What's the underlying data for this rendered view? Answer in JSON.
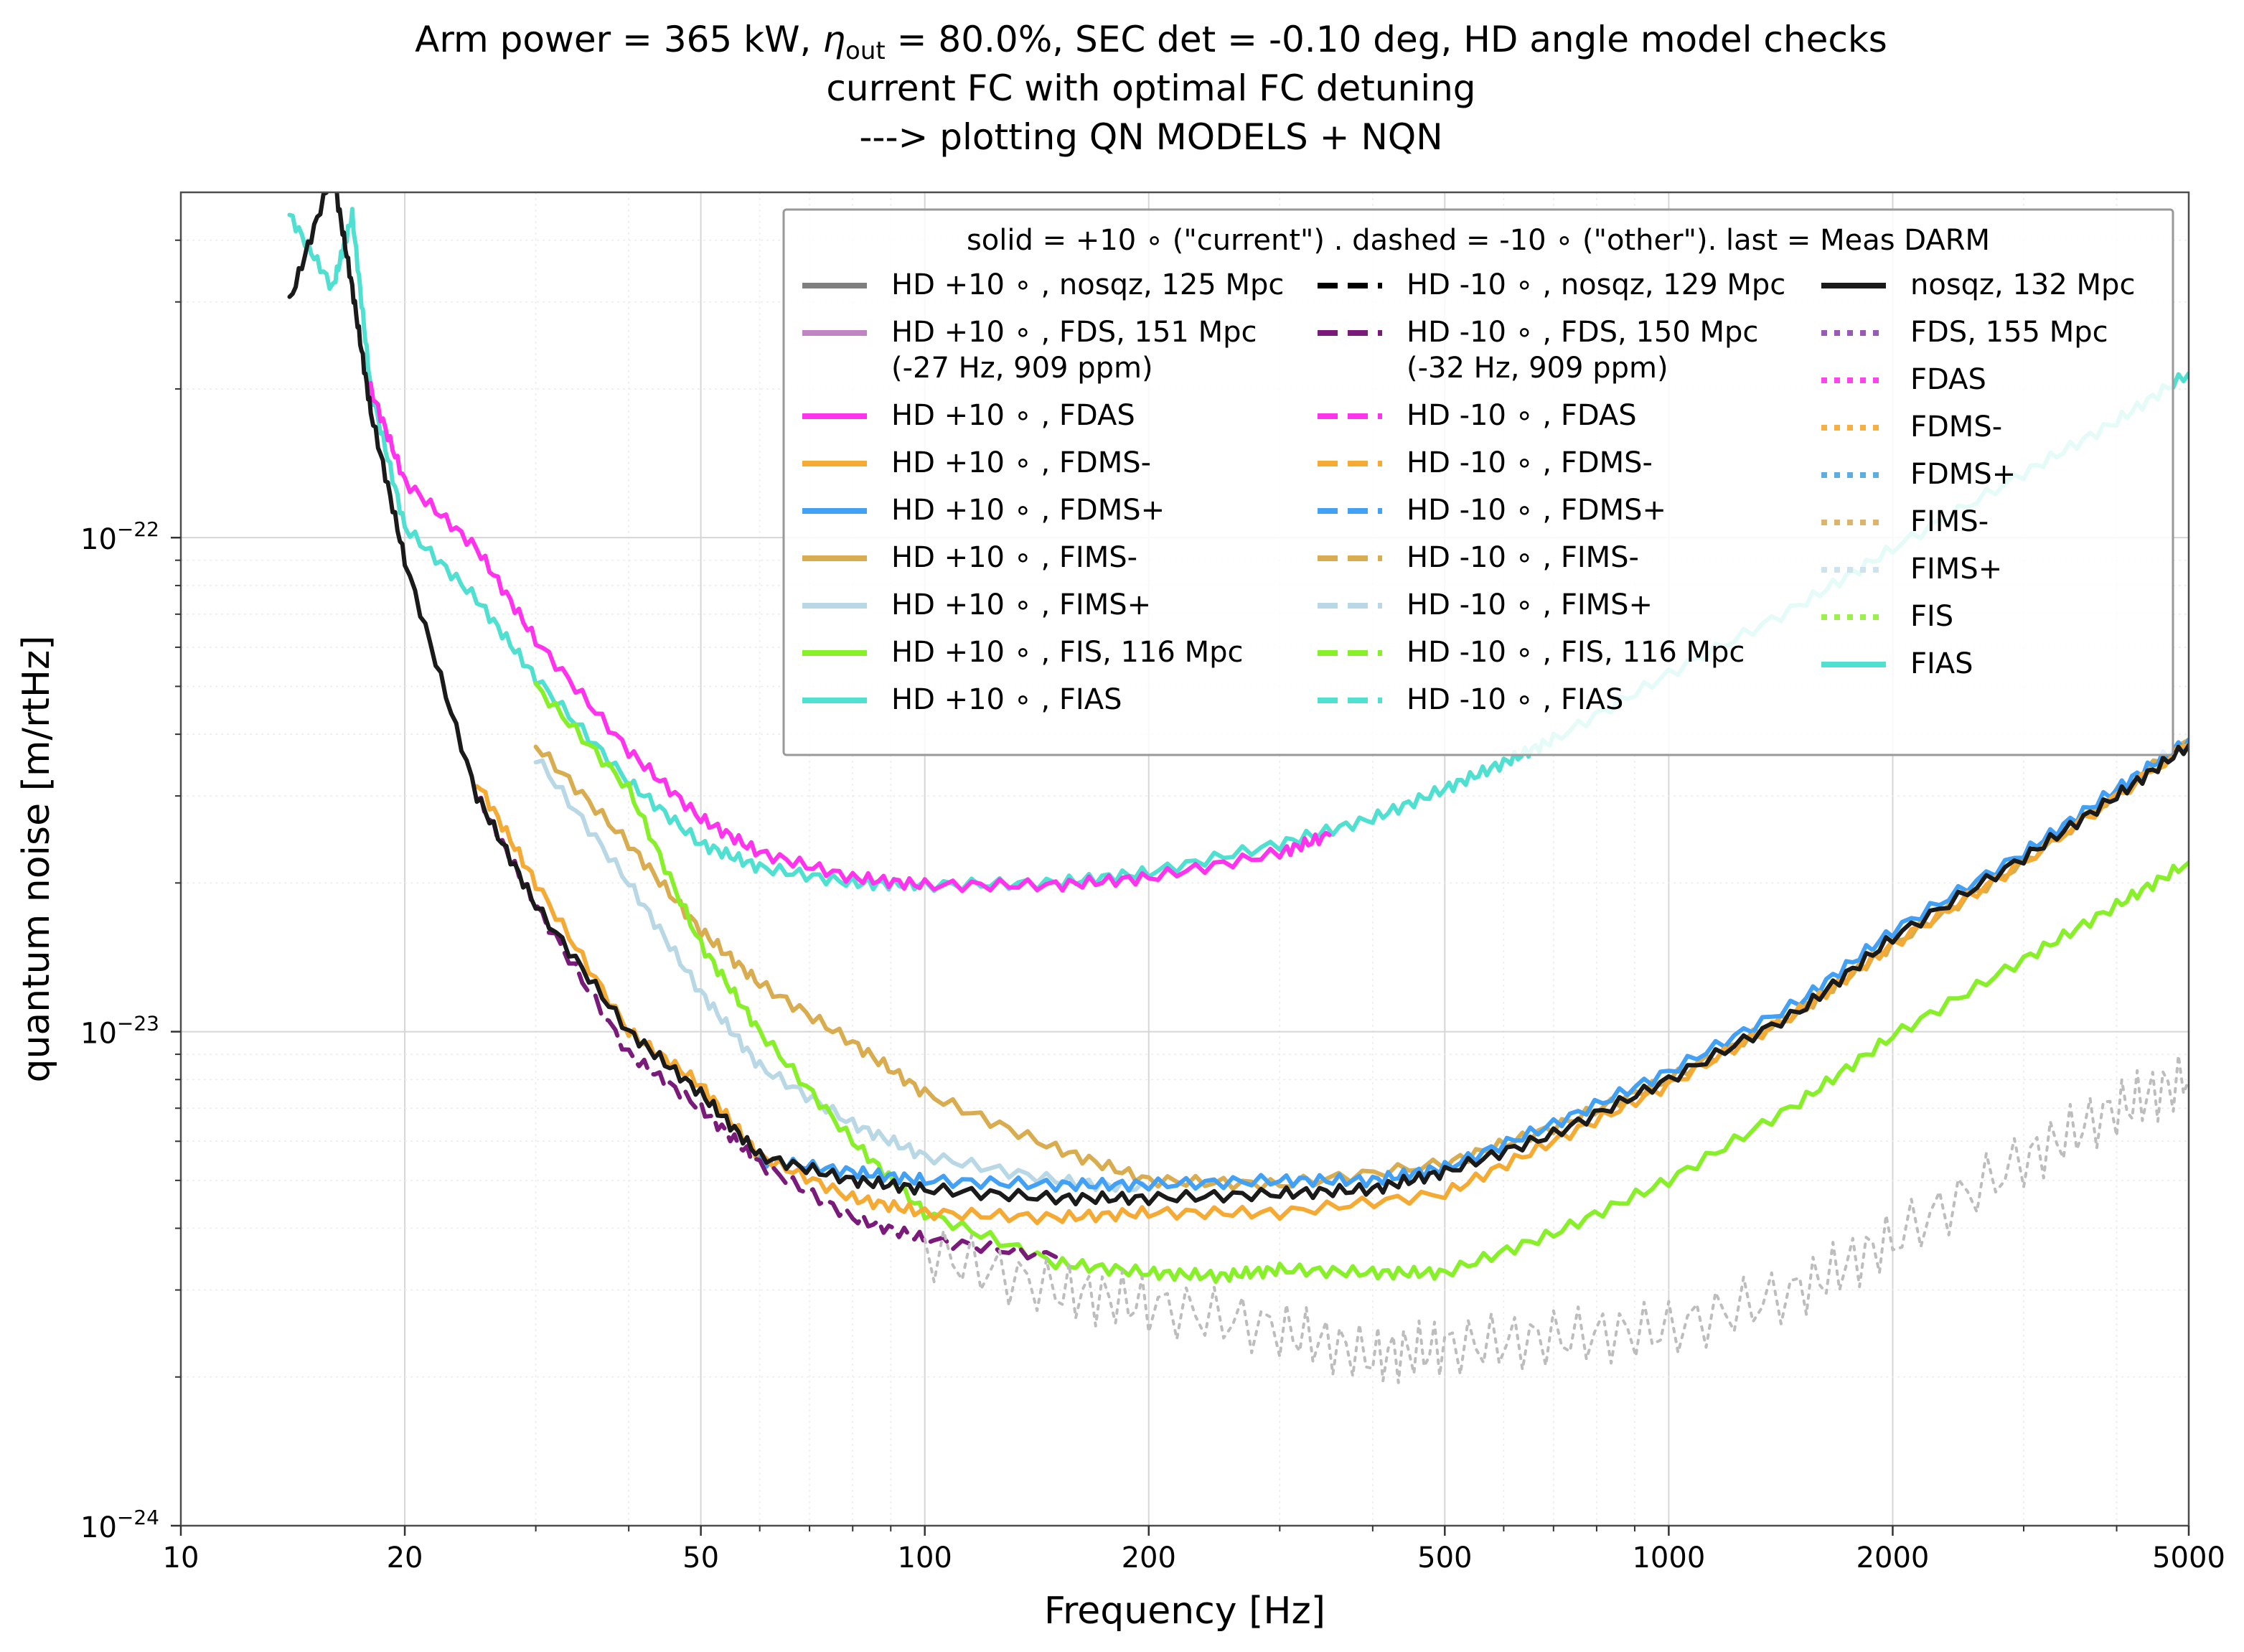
{
  "title": {
    "line1_pre": "Arm power = 365 kW, ",
    "line1_eta": "η",
    "line1_sub": "out",
    "line1_post": " = 80.0%, SEC det = -0.10 deg, HD angle model checks",
    "line2": "current FC with optimal FC detuning",
    "line3": "---> plotting QN MODELS + NQN"
  },
  "chart_data": {
    "type": "line",
    "xlabel": "Frequency [Hz]",
    "ylabel": "quantum noise [m/rtHz]",
    "x_scale": "log",
    "y_scale": "log",
    "xlim": [
      10,
      5000
    ],
    "ylim": [
      1e-24,
      5e-22
    ],
    "grid": true,
    "x_ticks": [
      {
        "value": 10,
        "label": "10"
      },
      {
        "value": 20,
        "label": "20"
      },
      {
        "value": 50,
        "label": "50"
      },
      {
        "value": 100,
        "label": "100"
      },
      {
        "value": 200,
        "label": "200"
      },
      {
        "value": 500,
        "label": "500"
      },
      {
        "value": 1000,
        "label": "1000"
      },
      {
        "value": 2000,
        "label": "2000"
      },
      {
        "value": 5000,
        "label": "5000"
      }
    ],
    "y_ticks": [
      {
        "value": 1e-24,
        "mant": "10",
        "exp": "−24"
      },
      {
        "value": 1e-23,
        "mant": "10",
        "exp": "−23"
      },
      {
        "value": 1e-22,
        "mant": "10",
        "exp": "−22"
      }
    ],
    "legend": {
      "placement": "top-right",
      "header": "solid = +10 ∘ (\"current\") . dashed = -10 ∘ (\"other\"). last = Meas DARM",
      "columns": [
        [
          {
            "label": [
              "HD +10 ∘ , nosqz, 125 Mpc"
            ],
            "color": "#7f7f7f",
            "style": "solid"
          },
          {
            "label": [
              "HD +10 ∘ , FDS, 151 Mpc",
              "(-27 Hz, 909 ppm)"
            ],
            "color": "#c084c4",
            "style": "solid"
          },
          {
            "label": [
              "HD +10 ∘ , FDAS"
            ],
            "color": "#ff33ee",
            "style": "solid"
          },
          {
            "label": [
              "HD +10 ∘ , FDMS-"
            ],
            "color": "#f5aa33",
            "style": "solid"
          },
          {
            "label": [
              "HD +10 ∘ , FDMS+"
            ],
            "color": "#42a0f5",
            "style": "solid"
          },
          {
            "label": [
              "HD +10 ∘ , FIMS-"
            ],
            "color": "#d9ad4f",
            "style": "solid"
          },
          {
            "label": [
              "HD +10 ∘ , FIMS+"
            ],
            "color": "#b8d8e6",
            "style": "solid"
          },
          {
            "label": [
              "HD +10 ∘ , FIS, 116 Mpc"
            ],
            "color": "#88f028",
            "style": "solid"
          },
          {
            "label": [
              "HD +10 ∘ , FIAS"
            ],
            "color": "#4fe0d2",
            "style": "solid"
          }
        ],
        [
          {
            "label": [
              "HD -10 ∘ , nosqz, 129 Mpc"
            ],
            "color": "#000000",
            "style": "dashed"
          },
          {
            "label": [
              "HD -10 ∘ , FDS, 150 Mpc",
              "(-32 Hz, 909 ppm)"
            ],
            "color": "#7a1a7a",
            "style": "dashed"
          },
          {
            "label": [
              "HD -10 ∘ , FDAS"
            ],
            "color": "#ff33ee",
            "style": "dashed"
          },
          {
            "label": [
              "HD -10 ∘ , FDMS-"
            ],
            "color": "#f5aa33",
            "style": "dashed"
          },
          {
            "label": [
              "HD -10 ∘ , FDMS+"
            ],
            "color": "#42a0f5",
            "style": "dashed"
          },
          {
            "label": [
              "HD -10 ∘ , FIMS-"
            ],
            "color": "#d9ad4f",
            "style": "dashed"
          },
          {
            "label": [
              "HD -10 ∘ , FIMS+"
            ],
            "color": "#b8d8e6",
            "style": "dashed"
          },
          {
            "label": [
              "HD -10 ∘ , FIS, 116 Mpc"
            ],
            "color": "#88f028",
            "style": "dashed"
          },
          {
            "label": [
              "HD -10 ∘ , FIAS"
            ],
            "color": "#4fe0d2",
            "style": "dashed"
          }
        ],
        [
          {
            "label": [
              "nosqz, 132 Mpc"
            ],
            "color": "#1a1a1a",
            "style": "solid"
          },
          {
            "label": [
              "FDS, 155 Mpc"
            ],
            "color": "#9b59b6",
            "style": "dotted"
          },
          {
            "label": [
              "FDAS"
            ],
            "color": "#ff44ee",
            "style": "dotted"
          },
          {
            "label": [
              "FDMS-"
            ],
            "color": "#f5b041",
            "style": "dotted"
          },
          {
            "label": [
              "FDMS+"
            ],
            "color": "#5dade2",
            "style": "dotted"
          },
          {
            "label": [
              "FIMS-"
            ],
            "color": "#dbb56a",
            "style": "dotted"
          },
          {
            "label": [
              "FIMS+"
            ],
            "color": "#cfe3ec",
            "style": "dotted"
          },
          {
            "label": [
              "FIS"
            ],
            "color": "#9cf04a",
            "style": "dotted"
          },
          {
            "label": [
              "FIAS"
            ],
            "color": "#4fe0d2",
            "style": "solid"
          }
        ]
      ]
    },
    "series": [
      {
        "color": "#4fe0d2",
        "style": "solid",
        "x": [
          14,
          16,
          17,
          18,
          20,
          25,
          30,
          40,
          50,
          60,
          80,
          100,
          150,
          200,
          300,
          400,
          500,
          600,
          700,
          1000,
          1500,
          2000,
          3000,
          4000,
          5000
        ],
        "y": [
          4.5e-22,
          3.2e-22,
          4.5e-22,
          2e-22,
          1.05e-22,
          7.5e-23,
          5.2e-23,
          3.2e-23,
          2.4e-23,
          2.15e-23,
          2e-23,
          1.98e-23,
          2e-23,
          2.1e-23,
          2.4e-23,
          2.7e-23,
          3.1e-23,
          3.5e-23,
          3.9e-23,
          5.3e-23,
          7.3e-23,
          9.5e-23,
          1.35e-22,
          1.72e-22,
          2.15e-22
        ]
      },
      {
        "color": "#ff33ee",
        "style": "solid",
        "x": [
          18,
          20,
          25,
          30,
          40,
          50,
          60,
          80,
          100,
          150,
          200,
          300,
          350
        ],
        "y": [
          2e-22,
          1.3e-22,
          9.5e-23,
          6.2e-23,
          3.7e-23,
          2.7e-23,
          2.3e-23,
          2.05e-23,
          1.98e-23,
          1.98e-23,
          2.05e-23,
          2.3e-23,
          2.5e-23
        ]
      },
      {
        "color": "#d9ad4f",
        "style": "solid",
        "x": [
          30,
          40,
          50,
          60,
          80,
          100,
          150,
          200,
          300,
          500,
          700,
          1000,
          1500,
          2000,
          3000,
          5000
        ],
        "y": [
          3.8e-23,
          2.4e-23,
          1.6e-23,
          1.25e-23,
          9.5e-24,
          7.5e-24,
          5.8e-24,
          5e-24,
          4.9e-24,
          5.4e-24,
          6.4e-24,
          8e-24,
          1.1e-23,
          1.5e-23,
          2.2e-23,
          3.9e-23
        ]
      },
      {
        "color": "#b8d8e6",
        "style": "solid",
        "x": [
          30,
          40,
          50,
          60,
          80,
          100,
          150,
          200
        ],
        "y": [
          3.6e-23,
          2e-23,
          1.2e-23,
          8.5e-24,
          6.5e-24,
          5.6e-24,
          5e-24,
          4.8e-24
        ]
      },
      {
        "color": "#88f028",
        "style": "solid",
        "x": [
          30,
          40,
          50,
          60,
          80,
          100,
          150,
          200,
          250,
          300,
          400,
          500,
          700,
          1000,
          1500,
          2000,
          3000,
          4000,
          5000
        ],
        "y": [
          5e-23,
          3.1e-23,
          1.5e-23,
          1e-23,
          6e-24,
          4.3e-24,
          3.4e-24,
          3.25e-24,
          3.2e-24,
          3.3e-24,
          3.25e-24,
          3.25e-24,
          3.9e-24,
          5e-24,
          7.2e-24,
          9.8e-24,
          1.4e-23,
          1.8e-23,
          2.2e-23
        ]
      },
      {
        "color": "#42a0f5",
        "style": "solid",
        "x": [
          60,
          80,
          100,
          150,
          200,
          300,
          400,
          500,
          700,
          1000,
          1500,
          2000,
          3000,
          4000,
          5000
        ],
        "y": [
          5.5e-24,
          5.2e-24,
          5e-24,
          4.9e-24,
          4.9e-24,
          5e-24,
          5e-24,
          5.3e-24,
          6.5e-24,
          8.3e-24,
          1.15e-23,
          1.6e-23,
          2.3e-23,
          3.1e-23,
          3.9e-23
        ]
      },
      {
        "color": "#f5aa33",
        "style": "solid",
        "x": [
          25,
          30,
          40,
          50,
          60,
          80,
          100,
          150,
          200,
          300,
          500,
          700,
          1000,
          1500,
          2000,
          3000,
          5000
        ],
        "y": [
          3.2e-23,
          2e-23,
          1e-23,
          7.8e-24,
          5.6e-24,
          4.6e-24,
          4.3e-24,
          4.2e-24,
          4.3e-24,
          4.3e-24,
          4.7e-24,
          6e-24,
          7.8e-24,
          1.1e-23,
          1.5e-23,
          2.2e-23,
          3.8e-23
        ]
      },
      {
        "color": "#7a1a7a",
        "style": "dashed",
        "x": [
          25,
          30,
          40,
          50,
          60,
          80,
          100,
          150
        ],
        "y": [
          3e-23,
          1.8e-23,
          9e-24,
          7e-24,
          5.4e-24,
          4.2e-24,
          3.8e-24,
          3.5e-24
        ]
      },
      {
        "color": "#1a1a1a",
        "style": "solid",
        "x": [
          14,
          16,
          17,
          18,
          20,
          25,
          30,
          40,
          50,
          60,
          80,
          100,
          150,
          200,
          300,
          400,
          500,
          700,
          1000,
          1500,
          2000,
          3000,
          4000,
          5000
        ],
        "y": [
          3e-22,
          5.5e-22,
          3.2e-22,
          1.8e-22,
          9e-23,
          3e-23,
          1.8e-23,
          1e-23,
          7.5e-24,
          5.6e-24,
          5e-24,
          4.8e-24,
          4.6e-24,
          4.6e-24,
          4.7e-24,
          4.8e-24,
          5.2e-24,
          6.2e-24,
          8e-24,
          1.1e-23,
          1.55e-23,
          2.25e-23,
          3e-23,
          3.8e-23
        ]
      },
      {
        "color": "#bdbdbd",
        "style": "dotted",
        "x": [
          100,
          150,
          200,
          300,
          400,
          500,
          700,
          1000,
          1500,
          2000,
          3000,
          4000,
          5000
        ],
        "y": [
          3.6e-24,
          3e-24,
          2.8e-24,
          2.5e-24,
          2.2e-24,
          2.3e-24,
          2.4e-24,
          2.5e-24,
          3e-24,
          3.8e-24,
          5.5e-24,
          7e-24,
          8e-24
        ]
      }
    ]
  }
}
